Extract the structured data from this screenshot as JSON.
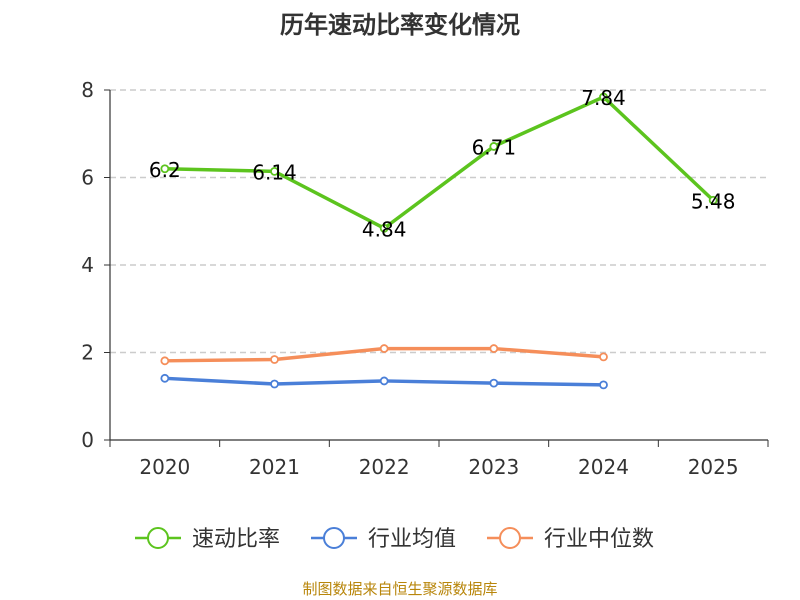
{
  "chart_data": {
    "type": "line",
    "title": "历年速动比率变化情况",
    "categories": [
      "2020",
      "2021",
      "2022",
      "2023",
      "2024",
      "2025"
    ],
    "ylim": [
      0,
      8
    ],
    "yticks": [
      0,
      2,
      4,
      6,
      8
    ],
    "grid": true,
    "legend_position": "bottom",
    "series": [
      {
        "name": "速动比率",
        "color": "#5cc41e",
        "values": [
          6.2,
          6.14,
          4.84,
          6.71,
          7.84,
          5.48
        ],
        "labels": [
          "6.2",
          "6.14",
          "4.84",
          "6.71",
          "7.84",
          "5.48"
        ]
      },
      {
        "name": "行业均值",
        "color": "#4a7fd8",
        "values": [
          1.41,
          1.28,
          1.35,
          1.3,
          1.26,
          null
        ]
      },
      {
        "name": "行业中位数",
        "color": "#f58e5a",
        "values": [
          1.81,
          1.84,
          2.09,
          2.09,
          1.9,
          null
        ]
      }
    ],
    "source": "制图数据来自恒生聚源数据库"
  }
}
